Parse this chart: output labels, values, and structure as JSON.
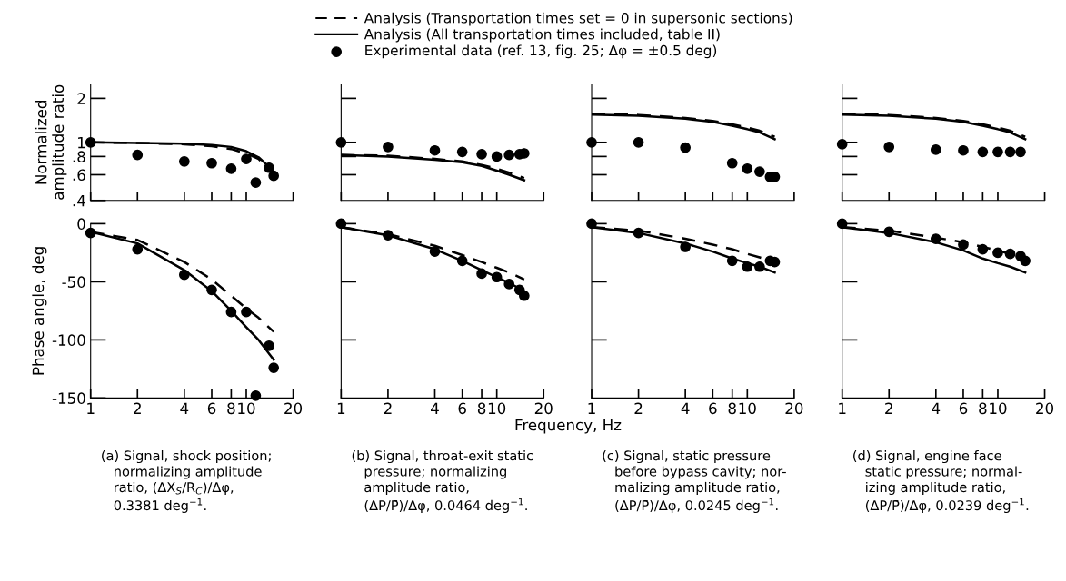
{
  "chart_data": [
    {
      "type": "line",
      "ylabel": "Normalized\namplitude ratio",
      "log": "xy",
      "xlim": [
        1,
        20
      ],
      "xticks": [
        {
          "value": 1,
          "label": null
        },
        {
          "value": 2,
          "label": null
        },
        {
          "value": 4,
          "label": null
        },
        {
          "value": 6,
          "label": null
        },
        {
          "value": 8,
          "label": null
        },
        {
          "value": 10,
          "label": null
        },
        {
          "value": 20,
          "label": null
        }
      ],
      "ylim": [
        0.4,
        2.5
      ],
      "yticks": [
        {
          "value": 0.4,
          "label": ".4"
        },
        {
          "value": 0.6,
          "label": ".6"
        },
        {
          "value": 0.8,
          "label": ".8"
        },
        1,
        2
      ],
      "tick_labels": "y",
      "legend": "top",
      "series": [
        {
          "name": "Analysis (Transportation times set = 0 in supersonic sections)",
          "color": "#000000",
          "line_style": "dashed",
          "x": [
            1,
            2,
            4,
            6,
            8,
            10,
            12,
            14
          ],
          "values": [
            1.0,
            0.99,
            0.97,
            0.94,
            0.9,
            0.84,
            0.77,
            0.65
          ]
        },
        {
          "name": "Analysis (All transportation times included, table II)",
          "color": "#000000",
          "line_style": "solid",
          "x": [
            1,
            2,
            4,
            6,
            8,
            10,
            12,
            14
          ],
          "values": [
            1.0,
            0.99,
            0.98,
            0.96,
            0.93,
            0.87,
            0.79,
            0.68
          ]
        },
        {
          "name": "Experimental data (ref. 13, fig. 25; Δφ = ±0.5 deg)",
          "color": "#000000",
          "type": "scatter",
          "marker": "circle",
          "x": [
            1,
            2,
            4,
            6,
            8,
            10,
            11.5,
            14,
            15
          ],
          "values": [
            1.0,
            0.82,
            0.74,
            0.72,
            0.66,
            0.77,
            0.53,
            0.67,
            0.59
          ]
        }
      ]
    },
    {
      "type": "line",
      "log": "xy",
      "xlim": [
        1,
        20
      ],
      "xticks": [
        {
          "value": 1,
          "label": null
        },
        {
          "value": 2,
          "label": null
        },
        {
          "value": 4,
          "label": null
        },
        {
          "value": 6,
          "label": null
        },
        {
          "value": 8,
          "label": null
        },
        {
          "value": 10,
          "label": null
        },
        {
          "value": 20,
          "label": null
        }
      ],
      "ylim": [
        0.4,
        2.5
      ],
      "yticks": [
        {
          "value": 0.6,
          "label": null
        },
        {
          "value": 0.8,
          "label": null
        },
        {
          "value": 1,
          "label": null
        },
        {
          "value": 2,
          "label": null
        }
      ],
      "tick_labels": false,
      "series": [
        {
          "color": "#000000",
          "line_style": "dashed",
          "x": [
            1,
            2,
            4,
            6,
            8,
            10,
            12,
            15
          ],
          "values": [
            0.82,
            0.81,
            0.77,
            0.74,
            0.7,
            0.66,
            0.62,
            0.57
          ]
        },
        {
          "color": "#000000",
          "line_style": "solid",
          "x": [
            1,
            2,
            4,
            6,
            8,
            10,
            12,
            15
          ],
          "values": [
            0.82,
            0.8,
            0.76,
            0.73,
            0.69,
            0.64,
            0.6,
            0.55
          ]
        },
        {
          "color": "#000000",
          "type": "scatter",
          "marker": "circle",
          "x": [
            1,
            2,
            4,
            6,
            8,
            10,
            12,
            14,
            15
          ],
          "values": [
            1.0,
            0.93,
            0.88,
            0.86,
            0.83,
            0.8,
            0.82,
            0.83,
            0.84
          ]
        }
      ]
    },
    {
      "type": "line",
      "log": "xy",
      "xlim": [
        1,
        20
      ],
      "xticks": [
        {
          "value": 1,
          "label": null
        },
        {
          "value": 2,
          "label": null
        },
        {
          "value": 4,
          "label": null
        },
        {
          "value": 6,
          "label": null
        },
        {
          "value": 8,
          "label": null
        },
        {
          "value": 10,
          "label": null
        },
        {
          "value": 20,
          "label": null
        }
      ],
      "ylim": [
        0.4,
        2.5
      ],
      "yticks": [
        {
          "value": 0.6,
          "label": null
        },
        {
          "value": 0.8,
          "label": null
        },
        {
          "value": 1,
          "label": null
        },
        {
          "value": 2,
          "label": null
        }
      ],
      "tick_labels": false,
      "series": [
        {
          "color": "#000000",
          "line_style": "dashed",
          "x": [
            1,
            2,
            4,
            6,
            8,
            10,
            12,
            15
          ],
          "values": [
            1.57,
            1.54,
            1.47,
            1.4,
            1.33,
            1.26,
            1.2,
            1.09
          ]
        },
        {
          "color": "#000000",
          "line_style": "solid",
          "x": [
            1,
            2,
            4,
            6,
            8,
            10,
            12,
            15
          ],
          "values": [
            1.55,
            1.52,
            1.45,
            1.38,
            1.3,
            1.23,
            1.17,
            1.05
          ]
        },
        {
          "color": "#000000",
          "type": "scatter",
          "marker": "circle",
          "x": [
            1,
            2,
            4,
            8,
            10,
            12,
            14,
            15
          ],
          "values": [
            1.0,
            1.0,
            0.92,
            0.72,
            0.66,
            0.63,
            0.58,
            0.58
          ]
        }
      ]
    },
    {
      "type": "line",
      "log": "xy",
      "xlim": [
        1,
        20
      ],
      "xticks": [
        {
          "value": 1,
          "label": null
        },
        {
          "value": 2,
          "label": null
        },
        {
          "value": 4,
          "label": null
        },
        {
          "value": 6,
          "label": null
        },
        {
          "value": 8,
          "label": null
        },
        {
          "value": 10,
          "label": null
        },
        {
          "value": 20,
          "label": null
        }
      ],
      "ylim": [
        0.4,
        2.5
      ],
      "yticks": [
        {
          "value": 0.6,
          "label": null
        },
        {
          "value": 0.8,
          "label": null
        },
        {
          "value": 1,
          "label": null
        },
        {
          "value": 2,
          "label": null
        }
      ],
      "tick_labels": false,
      "series": [
        {
          "color": "#000000",
          "line_style": "dashed",
          "x": [
            1,
            2,
            4,
            6,
            8,
            10,
            12,
            15
          ],
          "values": [
            1.57,
            1.54,
            1.47,
            1.4,
            1.33,
            1.26,
            1.2,
            1.09
          ]
        },
        {
          "color": "#000000",
          "line_style": "solid",
          "x": [
            1,
            2,
            4,
            6,
            8,
            10,
            12,
            15
          ],
          "values": [
            1.55,
            1.52,
            1.45,
            1.38,
            1.3,
            1.23,
            1.17,
            1.05
          ]
        },
        {
          "color": "#000000",
          "type": "scatter",
          "marker": "circle",
          "x": [
            1,
            2,
            4,
            6,
            8,
            10,
            12,
            14
          ],
          "values": [
            0.97,
            0.93,
            0.89,
            0.88,
            0.86,
            0.86,
            0.86,
            0.86
          ]
        }
      ]
    },
    {
      "type": "line",
      "ylabel": "Phase angle, deg",
      "log": "x",
      "xlim": [
        1,
        20
      ],
      "xticks": [
        1,
        2,
        4,
        6,
        8,
        10,
        20
      ],
      "ylim": [
        -150,
        0
      ],
      "yticks": [
        0,
        {
          "value": -50,
          "label": "-50"
        },
        {
          "value": -100,
          "label": "-100"
        },
        {
          "value": -150,
          "label": "-150"
        }
      ],
      "annotations": [
        "(a) Signal, shock position;\n   normalizing amplitude\n   ratio, (ΔX$_{S}$/R$_{C}$)/Δφ,\n   0.3381 deg$^{−1}$."
      ],
      "series": [
        {
          "color": "#000000",
          "line_style": "dashed",
          "x": [
            1,
            2,
            4,
            6,
            8,
            10,
            12,
            15
          ],
          "values": [
            -7,
            -14,
            -33,
            -48,
            -62,
            -73,
            -81,
            -93
          ]
        },
        {
          "color": "#000000",
          "line_style": "solid",
          "x": [
            1,
            2,
            4,
            6,
            8,
            10,
            12,
            15
          ],
          "values": [
            -7,
            -17,
            -40,
            -58,
            -75,
            -89,
            -100,
            -117
          ]
        },
        {
          "color": "#000000",
          "type": "scatter",
          "marker": "circle",
          "x": [
            1,
            2,
            4,
            6,
            8,
            10,
            11.5,
            14,
            15
          ],
          "values": [
            -8,
            -22,
            -44,
            -57,
            -76,
            -76,
            -148,
            -105,
            -124
          ]
        }
      ]
    },
    {
      "type": "line",
      "log": "x",
      "xlim": [
        1,
        20
      ],
      "xticks": [
        1,
        2,
        4,
        6,
        8,
        10,
        20
      ],
      "ylim": [
        -150,
        0
      ],
      "yticks": [
        {
          "value": 0,
          "label": null
        },
        {
          "value": -50,
          "label": null
        },
        {
          "value": -100,
          "label": null
        }
      ],
      "tick_labels": "x",
      "xlabel": "Frequency, Hz",
      "annotations": [
        "(b) Signal, throat-exit static\n   pressure; normalizing\n   amplitude ratio,\n   (ΔP/P̄)/Δφ, 0.0464 deg$^{−1}$."
      ],
      "series": [
        {
          "color": "#000000",
          "line_style": "dashed",
          "x": [
            1,
            2,
            4,
            6,
            8,
            10,
            12,
            15
          ],
          "values": [
            -3,
            -9,
            -19,
            -27,
            -33,
            -38,
            -42,
            -48
          ]
        },
        {
          "color": "#000000",
          "line_style": "solid",
          "x": [
            1,
            2,
            4,
            6,
            8,
            10,
            12,
            15
          ],
          "values": [
            -3,
            -10,
            -22,
            -32,
            -40,
            -46,
            -51,
            -58
          ]
        },
        {
          "color": "#000000",
          "type": "scatter",
          "marker": "circle",
          "x": [
            1,
            2,
            4,
            6,
            8,
            10,
            12,
            14,
            15
          ],
          "values": [
            0,
            -10,
            -24,
            -32,
            -43,
            -46,
            -52,
            -57,
            -62
          ]
        }
      ]
    },
    {
      "type": "line",
      "log": "x",
      "xlim": [
        1,
        20
      ],
      "xticks": [
        1,
        2,
        4,
        6,
        8,
        10,
        20
      ],
      "ylim": [
        -150,
        0
      ],
      "yticks": [
        {
          "value": 0,
          "label": null
        },
        {
          "value": -50,
          "label": null
        },
        {
          "value": -100,
          "label": null
        }
      ],
      "tick_labels": "x",
      "annotations": [
        "(c) Signal, static pressure\n   before bypass cavity; nor-\n   malizing amplitude ratio,\n   (ΔP/P̄)/Δφ, 0.0245 deg$^{−1}$."
      ],
      "series": [
        {
          "color": "#000000",
          "line_style": "dashed",
          "x": [
            1,
            2,
            4,
            6,
            8,
            10,
            12,
            15
          ],
          "values": [
            -3,
            -6,
            -13,
            -18,
            -22,
            -26,
            -29,
            -33
          ]
        },
        {
          "color": "#000000",
          "line_style": "solid",
          "x": [
            1,
            2,
            4,
            6,
            8,
            10,
            12,
            15
          ],
          "values": [
            -3,
            -8,
            -17,
            -24,
            -30,
            -34,
            -37,
            -42
          ]
        },
        {
          "color": "#000000",
          "type": "scatter",
          "marker": "circle",
          "x": [
            1,
            2,
            4,
            8,
            10,
            12,
            14,
            15
          ],
          "values": [
            0,
            -8,
            -20,
            -32,
            -37,
            -37,
            -32,
            -33
          ]
        }
      ]
    },
    {
      "type": "line",
      "log": "x",
      "xlim": [
        1,
        20
      ],
      "xticks": [
        1,
        2,
        4,
        6,
        8,
        10,
        20
      ],
      "ylim": [
        -150,
        0
      ],
      "yticks": [
        {
          "value": 0,
          "label": null
        },
        {
          "value": -50,
          "label": null
        },
        {
          "value": -100,
          "label": null
        }
      ],
      "tick_labels": "x",
      "annotations": [
        "(d) Signal, engine face\n   static pressure; normal-\n   izing amplitude ratio,\n   (ΔP/P̄)/Δφ, 0.0239 deg$^{−1}$."
      ],
      "series": [
        {
          "color": "#000000",
          "line_style": "dashed",
          "x": [
            1,
            2,
            4,
            6,
            8,
            10,
            12,
            15
          ],
          "values": [
            -3,
            -6,
            -12,
            -16,
            -20,
            -23,
            -26,
            -31
          ]
        },
        {
          "color": "#000000",
          "line_style": "solid",
          "x": [
            1,
            2,
            4,
            6,
            8,
            10,
            12,
            15
          ],
          "values": [
            -3,
            -8,
            -16,
            -23,
            -30,
            -34,
            -37,
            -42
          ]
        },
        {
          "color": "#000000",
          "type": "scatter",
          "marker": "circle",
          "x": [
            1,
            2,
            4,
            6,
            8,
            10,
            12,
            14,
            15
          ],
          "values": [
            0,
            -7,
            -13,
            -18,
            -22,
            -25,
            -26,
            -28,
            -32
          ]
        }
      ]
    }
  ]
}
